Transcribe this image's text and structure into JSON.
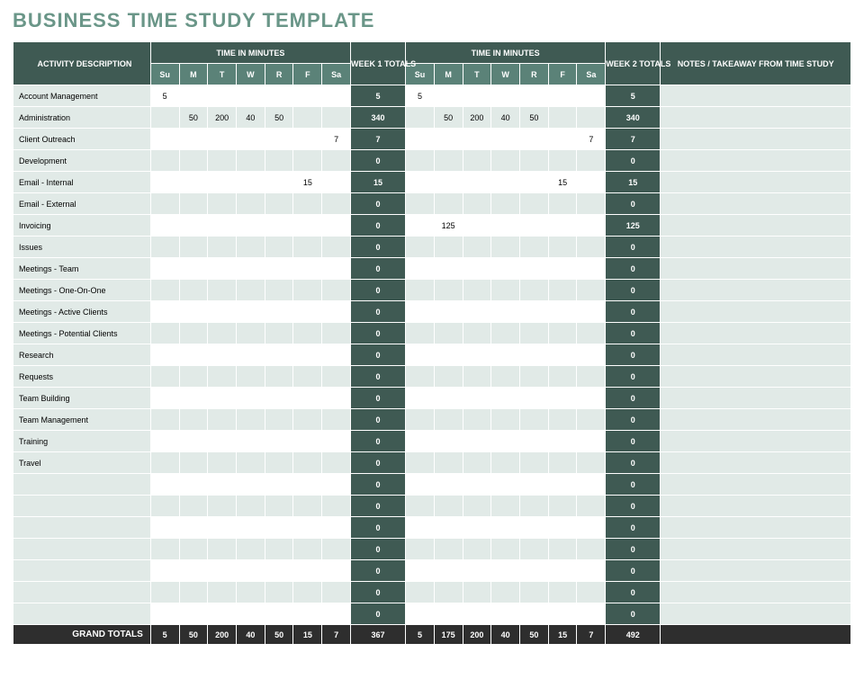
{
  "title": "BUSINESS TIME STUDY TEMPLATE",
  "title_color": "#6a9688",
  "colors": {
    "header_dark": "#3f5a53",
    "header_light": "#5b8278",
    "row_tint": "#e1eae7",
    "row_white": "#ffffff",
    "grand_bg": "#2e2e2e",
    "border": "#ffffff"
  },
  "columns": {
    "activity_header": "ACTIVITY DESCRIPTION",
    "time_group_header": "TIME IN MINUTES",
    "days": [
      "Su",
      "M",
      "T",
      "W",
      "R",
      "F",
      "Sa"
    ],
    "week1_total_header": "WEEK 1 TOTALS",
    "week2_total_header": "WEEK 2 TOTALS",
    "notes_header": "NOTES / TAKEAWAY FROM TIME STUDY"
  },
  "rows": [
    {
      "activity": "Account Management",
      "w1": [
        "5",
        "",
        "",
        "",
        "",
        "",
        ""
      ],
      "t1": "5",
      "w2": [
        "5",
        "",
        "",
        "",
        "",
        "",
        ""
      ],
      "t2": "5",
      "notes": ""
    },
    {
      "activity": "Administration",
      "w1": [
        "",
        "50",
        "200",
        "40",
        "50",
        "",
        ""
      ],
      "t1": "340",
      "w2": [
        "",
        "50",
        "200",
        "40",
        "50",
        "",
        ""
      ],
      "t2": "340",
      "notes": ""
    },
    {
      "activity": "Client Outreach",
      "w1": [
        "",
        "",
        "",
        "",
        "",
        "",
        "7"
      ],
      "t1": "7",
      "w2": [
        "",
        "",
        "",
        "",
        "",
        "",
        "7"
      ],
      "t2": "7",
      "notes": ""
    },
    {
      "activity": "Development",
      "w1": [
        "",
        "",
        "",
        "",
        "",
        "",
        ""
      ],
      "t1": "0",
      "w2": [
        "",
        "",
        "",
        "",
        "",
        "",
        ""
      ],
      "t2": "0",
      "notes": ""
    },
    {
      "activity": "Email - Internal",
      "w1": [
        "",
        "",
        "",
        "",
        "",
        "15",
        ""
      ],
      "t1": "15",
      "w2": [
        "",
        "",
        "",
        "",
        "",
        "15",
        ""
      ],
      "t2": "15",
      "notes": ""
    },
    {
      "activity": "Email - External",
      "w1": [
        "",
        "",
        "",
        "",
        "",
        "",
        ""
      ],
      "t1": "0",
      "w2": [
        "",
        "",
        "",
        "",
        "",
        "",
        ""
      ],
      "t2": "0",
      "notes": ""
    },
    {
      "activity": "Invoicing",
      "w1": [
        "",
        "",
        "",
        "",
        "",
        "",
        ""
      ],
      "t1": "0",
      "w2": [
        "",
        "125",
        "",
        "",
        "",
        "",
        ""
      ],
      "t2": "125",
      "notes": ""
    },
    {
      "activity": "Issues",
      "w1": [
        "",
        "",
        "",
        "",
        "",
        "",
        ""
      ],
      "t1": "0",
      "w2": [
        "",
        "",
        "",
        "",
        "",
        "",
        ""
      ],
      "t2": "0",
      "notes": ""
    },
    {
      "activity": "Meetings - Team",
      "w1": [
        "",
        "",
        "",
        "",
        "",
        "",
        ""
      ],
      "t1": "0",
      "w2": [
        "",
        "",
        "",
        "",
        "",
        "",
        ""
      ],
      "t2": "0",
      "notes": ""
    },
    {
      "activity": "Meetings - One-On-One",
      "w1": [
        "",
        "",
        "",
        "",
        "",
        "",
        ""
      ],
      "t1": "0",
      "w2": [
        "",
        "",
        "",
        "",
        "",
        "",
        ""
      ],
      "t2": "0",
      "notes": ""
    },
    {
      "activity": "Meetings - Active Clients",
      "w1": [
        "",
        "",
        "",
        "",
        "",
        "",
        ""
      ],
      "t1": "0",
      "w2": [
        "",
        "",
        "",
        "",
        "",
        "",
        ""
      ],
      "t2": "0",
      "notes": ""
    },
    {
      "activity": "Meetings - Potential Clients",
      "w1": [
        "",
        "",
        "",
        "",
        "",
        "",
        ""
      ],
      "t1": "0",
      "w2": [
        "",
        "",
        "",
        "",
        "",
        "",
        ""
      ],
      "t2": "0",
      "notes": ""
    },
    {
      "activity": "Research",
      "w1": [
        "",
        "",
        "",
        "",
        "",
        "",
        ""
      ],
      "t1": "0",
      "w2": [
        "",
        "",
        "",
        "",
        "",
        "",
        ""
      ],
      "t2": "0",
      "notes": ""
    },
    {
      "activity": "Requests",
      "w1": [
        "",
        "",
        "",
        "",
        "",
        "",
        ""
      ],
      "t1": "0",
      "w2": [
        "",
        "",
        "",
        "",
        "",
        "",
        ""
      ],
      "t2": "0",
      "notes": ""
    },
    {
      "activity": "Team Building",
      "w1": [
        "",
        "",
        "",
        "",
        "",
        "",
        ""
      ],
      "t1": "0",
      "w2": [
        "",
        "",
        "",
        "",
        "",
        "",
        ""
      ],
      "t2": "0",
      "notes": ""
    },
    {
      "activity": "Team Management",
      "w1": [
        "",
        "",
        "",
        "",
        "",
        "",
        ""
      ],
      "t1": "0",
      "w2": [
        "",
        "",
        "",
        "",
        "",
        "",
        ""
      ],
      "t2": "0",
      "notes": ""
    },
    {
      "activity": "Training",
      "w1": [
        "",
        "",
        "",
        "",
        "",
        "",
        ""
      ],
      "t1": "0",
      "w2": [
        "",
        "",
        "",
        "",
        "",
        "",
        ""
      ],
      "t2": "0",
      "notes": ""
    },
    {
      "activity": "Travel",
      "w1": [
        "",
        "",
        "",
        "",
        "",
        "",
        ""
      ],
      "t1": "0",
      "w2": [
        "",
        "",
        "",
        "",
        "",
        "",
        ""
      ],
      "t2": "0",
      "notes": ""
    },
    {
      "activity": "",
      "w1": [
        "",
        "",
        "",
        "",
        "",
        "",
        ""
      ],
      "t1": "0",
      "w2": [
        "",
        "",
        "",
        "",
        "",
        "",
        ""
      ],
      "t2": "0",
      "notes": ""
    },
    {
      "activity": "",
      "w1": [
        "",
        "",
        "",
        "",
        "",
        "",
        ""
      ],
      "t1": "0",
      "w2": [
        "",
        "",
        "",
        "",
        "",
        "",
        ""
      ],
      "t2": "0",
      "notes": ""
    },
    {
      "activity": "",
      "w1": [
        "",
        "",
        "",
        "",
        "",
        "",
        ""
      ],
      "t1": "0",
      "w2": [
        "",
        "",
        "",
        "",
        "",
        "",
        ""
      ],
      "t2": "0",
      "notes": ""
    },
    {
      "activity": "",
      "w1": [
        "",
        "",
        "",
        "",
        "",
        "",
        ""
      ],
      "t1": "0",
      "w2": [
        "",
        "",
        "",
        "",
        "",
        "",
        ""
      ],
      "t2": "0",
      "notes": ""
    },
    {
      "activity": "",
      "w1": [
        "",
        "",
        "",
        "",
        "",
        "",
        ""
      ],
      "t1": "0",
      "w2": [
        "",
        "",
        "",
        "",
        "",
        "",
        ""
      ],
      "t2": "0",
      "notes": ""
    },
    {
      "activity": "",
      "w1": [
        "",
        "",
        "",
        "",
        "",
        "",
        ""
      ],
      "t1": "0",
      "w2": [
        "",
        "",
        "",
        "",
        "",
        "",
        ""
      ],
      "t2": "0",
      "notes": ""
    },
    {
      "activity": "",
      "w1": [
        "",
        "",
        "",
        "",
        "",
        "",
        ""
      ],
      "t1": "0",
      "w2": [
        "",
        "",
        "",
        "",
        "",
        "",
        ""
      ],
      "t2": "0",
      "notes": ""
    }
  ],
  "grand_totals": {
    "label": "GRAND TOTALS",
    "w1": [
      "5",
      "50",
      "200",
      "40",
      "50",
      "15",
      "7"
    ],
    "t1": "367",
    "w2": [
      "5",
      "175",
      "200",
      "40",
      "50",
      "15",
      "7"
    ],
    "t2": "492",
    "notes": ""
  }
}
